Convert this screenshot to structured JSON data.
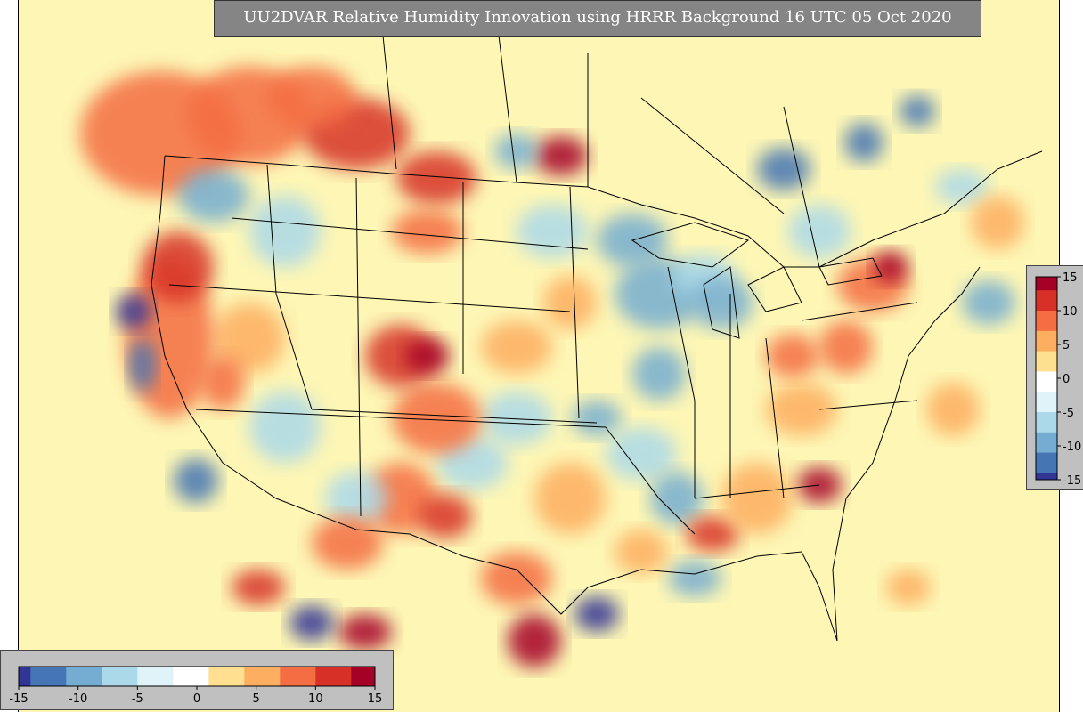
{
  "title": "UU2DVAR Relative Humidity Innovation using HRRR Background 16 UTC 05 Oct 2020",
  "chart_data": {
    "type": "heatmap",
    "title": "UU2DVAR Relative Humidity Innovation using HRRR Background 16 UTC 05 Oct 2020",
    "variable": "Relative Humidity Innovation",
    "background_model": "HRRR",
    "valid_time": "16 UTC 05 Oct 2020",
    "domain": "CONUS",
    "colormap": "RdYlBu_r",
    "value_range": [
      -15,
      15
    ],
    "colorbar_horizontal": {
      "ticks": [
        -15,
        -10,
        -5,
        0,
        5,
        10,
        15
      ],
      "tick_labels": [
        "-15",
        "-10",
        "-5",
        "0",
        "5",
        "10",
        "15"
      ],
      "placement": "bottom-left"
    },
    "colorbar_vertical": {
      "ticks": [
        15,
        10,
        5,
        0,
        -5,
        -10,
        -15
      ],
      "tick_labels": [
        "15",
        "10",
        "5",
        "0",
        "-5",
        "-10",
        "-15"
      ],
      "placement": "right"
    },
    "colors": [
      "#313695",
      "#4575b4",
      "#74add1",
      "#abd9e9",
      "#e0f3f8",
      "#ffffff",
      "#fee090",
      "#fdae61",
      "#f46d43",
      "#d73027",
      "#a50026"
    ]
  }
}
